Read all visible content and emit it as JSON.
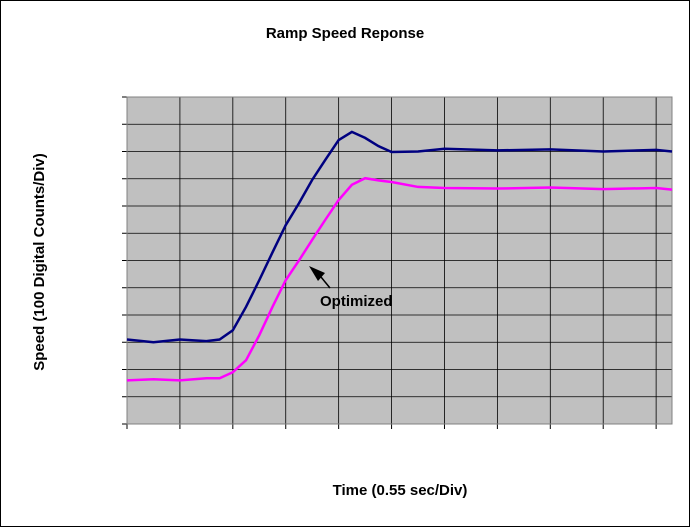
{
  "chart_data": {
    "type": "line",
    "title": "Ramp Speed Reponse",
    "x_label": "Time (0.55 sec/Div)",
    "y_label": "Speed (100 Digital Counts/Div)",
    "annotation": "Optimized",
    "x": [
      0,
      0.5,
      1,
      1.5,
      1.75,
      2,
      2.25,
      2.5,
      2.75,
      3,
      3.25,
      3.5,
      3.75,
      4,
      4.25,
      4.5,
      4.75,
      5,
      5.5,
      6,
      7,
      8,
      9,
      10,
      10.3
    ],
    "series": [
      {
        "color": "#000080",
        "values": [
          1.55,
          1.5,
          1.55,
          1.52,
          1.55,
          1.72,
          2.15,
          2.64,
          3.15,
          3.65,
          4.05,
          4.48,
          4.85,
          5.21,
          5.36,
          5.25,
          5.1,
          4.99,
          5.0,
          5.05,
          5.02,
          5.04,
          5.0,
          5.03,
          5.0
        ]
      },
      {
        "color": "#ff00ff",
        "values": [
          0.8,
          0.82,
          0.8,
          0.84,
          0.84,
          0.95,
          1.17,
          1.63,
          2.15,
          2.64,
          3.0,
          3.38,
          3.75,
          4.11,
          4.39,
          4.51,
          4.47,
          4.44,
          4.35,
          4.33,
          4.32,
          4.34,
          4.31,
          4.33,
          4.3
        ]
      }
    ],
    "xlim": [
      0,
      10.3
    ],
    "xticks": [
      0,
      1,
      2,
      3,
      4,
      5,
      6,
      7,
      8,
      9,
      10
    ],
    "ylim": [
      0,
      6
    ],
    "yticks": [
      0,
      0.5,
      1,
      1.5,
      2,
      2.5,
      3,
      3.5,
      4,
      4.5,
      5,
      5.5,
      6
    ],
    "grid": true,
    "plot_background": "#c0c0c0"
  }
}
